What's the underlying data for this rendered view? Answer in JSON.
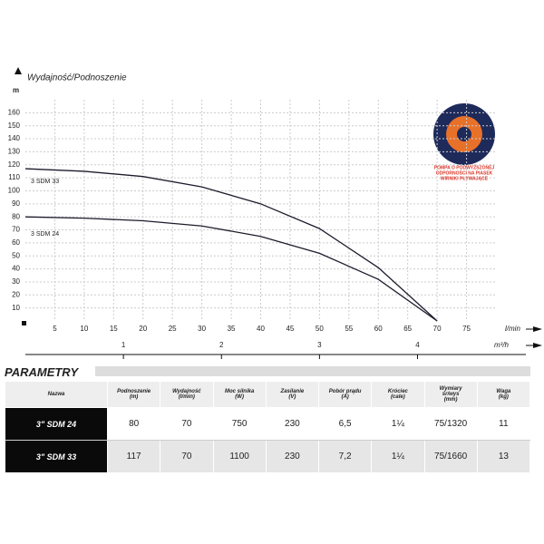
{
  "chart_data": {
    "type": "line",
    "title": "Wydajność/Podnoszenie",
    "ylabel": "m",
    "xlabel": "l/min",
    "x2label": "m³/h",
    "xlim": [
      0,
      80
    ],
    "xticks": [
      5,
      10,
      15,
      20,
      25,
      30,
      35,
      40,
      45,
      50,
      55,
      60,
      65,
      70,
      75
    ],
    "ylim": [
      0,
      170
    ],
    "yticks": [
      10,
      20,
      30,
      40,
      50,
      60,
      70,
      80,
      90,
      100,
      110,
      120,
      130,
      140,
      150,
      160
    ],
    "x2lim": [
      0,
      4.8
    ],
    "x2ticks": [
      1,
      2,
      3,
      4
    ],
    "grid": true,
    "series": [
      {
        "name": "3 SDM 33",
        "color": "#1c1c2c",
        "x": [
          0,
          10,
          20,
          30,
          40,
          50,
          60,
          70
        ],
        "values": [
          117,
          115,
          111,
          103,
          90,
          71,
          41,
          0
        ]
      },
      {
        "name": "3 SDM 24",
        "color": "#1c1c2c",
        "x": [
          0,
          10,
          20,
          30,
          40,
          50,
          60,
          70
        ],
        "values": [
          80,
          79,
          77,
          73,
          65,
          52,
          32,
          0
        ]
      }
    ],
    "badge": [
      "POMPA O PODWYŻSZONEJ",
      "ODPORNOŚCI NA PIASEK",
      "WIRNIKI PŁYWAJĄCE"
    ]
  },
  "table": {
    "title": "PARAMETRY",
    "header": [
      "Nazwa",
      "Podnoszenie\n(m)",
      "Wydajność\n(l/min)",
      "Moc silnika\n(W)",
      "Zasilanie\n(V)",
      "Pobór prądu\n(A)",
      "Króciec\n(cale)",
      "Wymiary\nśr/wys\n(mm)",
      "Waga\n(kg)"
    ],
    "rows": [
      [
        "3\" SDM 24",
        "80",
        "70",
        "750",
        "230",
        "6,5",
        "1¼",
        "75/1320",
        "11"
      ],
      [
        "3\" SDM 33",
        "117",
        "70",
        "1100",
        "230",
        "7,2",
        "1¼",
        "75/1660",
        "13"
      ]
    ]
  }
}
